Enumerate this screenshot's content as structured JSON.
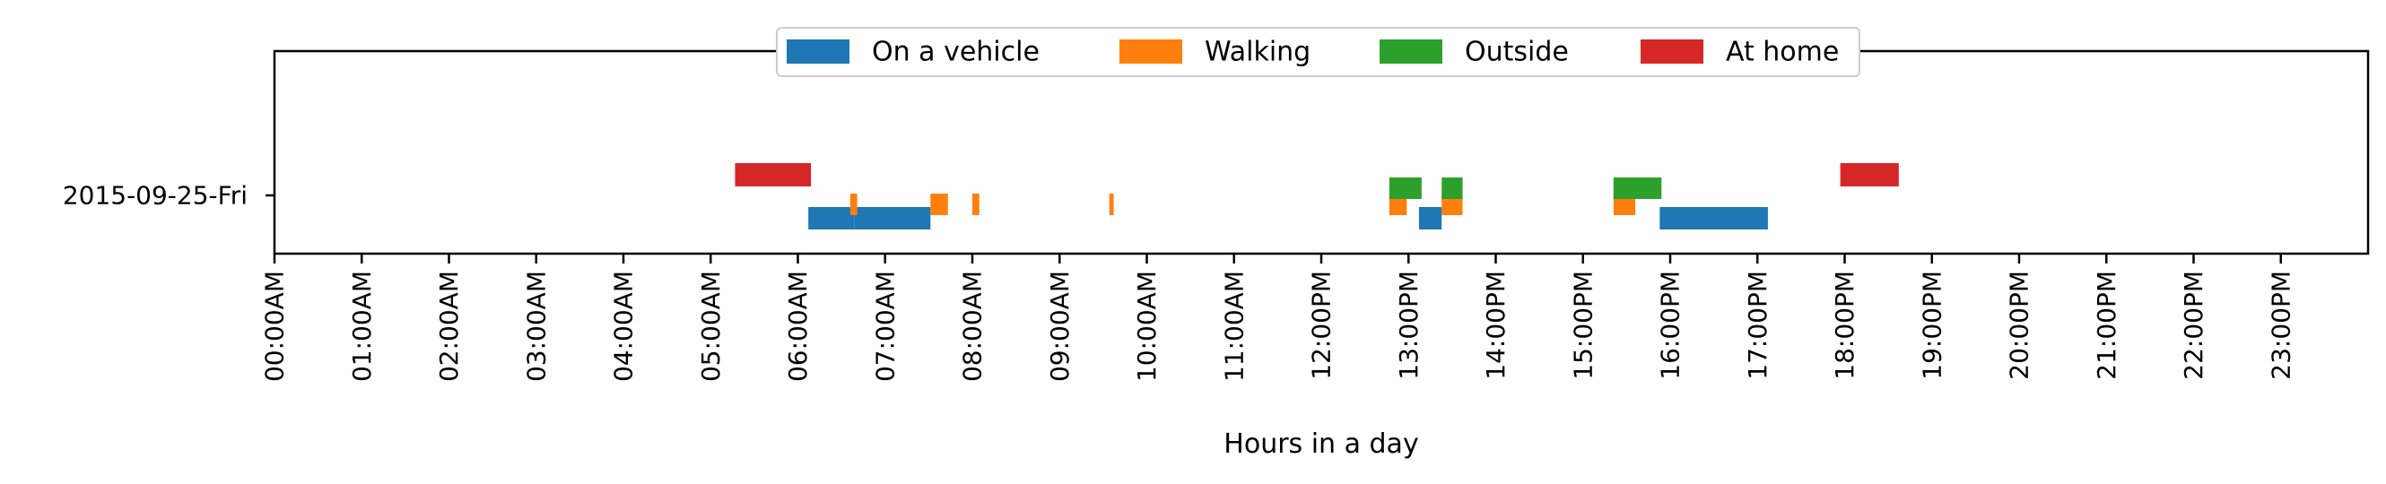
{
  "chart_data": {
    "type": "timeline",
    "title": "",
    "xlabel": "Hours in a day",
    "ylabel": "",
    "xlim": [
      0,
      24
    ],
    "x_ticks": [
      "00:00AM",
      "01:00AM",
      "02:00AM",
      "03:00AM",
      "04:00AM",
      "05:00AM",
      "06:00AM",
      "07:00AM",
      "08:00AM",
      "09:00AM",
      "10:00AM",
      "11:00AM",
      "12:00PM",
      "13:00PM",
      "14:00PM",
      "15:00PM",
      "16:00PM",
      "17:00PM",
      "18:00PM",
      "19:00PM",
      "20:00PM",
      "21:00PM",
      "22:00PM",
      "23:00PM"
    ],
    "categories": [
      "2015-09-25-Fri"
    ],
    "legend_position": "top-center",
    "grid": false,
    "series": [
      {
        "name": "On a vehicle",
        "color": "#1f77b4",
        "level": "bottom",
        "intervals": [
          [
            6.12,
            6.65
          ],
          [
            6.65,
            7.52
          ],
          [
            13.12,
            13.38
          ],
          [
            15.88,
            17.12
          ]
        ]
      },
      {
        "name": "Walking",
        "color": "#ff7f0e",
        "level": "middle",
        "intervals": [
          [
            6.6,
            6.68
          ],
          [
            7.52,
            7.72
          ],
          [
            8.0,
            8.08
          ],
          [
            9.57,
            9.62
          ],
          [
            12.78,
            12.98
          ],
          [
            13.38,
            13.62
          ],
          [
            15.35,
            15.6
          ]
        ]
      },
      {
        "name": "Outside",
        "color": "#2ca02c",
        "level": "upper",
        "intervals": [
          [
            12.78,
            13.15
          ],
          [
            13.38,
            13.62
          ],
          [
            15.35,
            15.9
          ]
        ]
      },
      {
        "name": "At home",
        "color": "#d62728",
        "level": "top",
        "intervals": [
          [
            5.28,
            6.15
          ],
          [
            17.95,
            18.62
          ]
        ]
      }
    ]
  }
}
